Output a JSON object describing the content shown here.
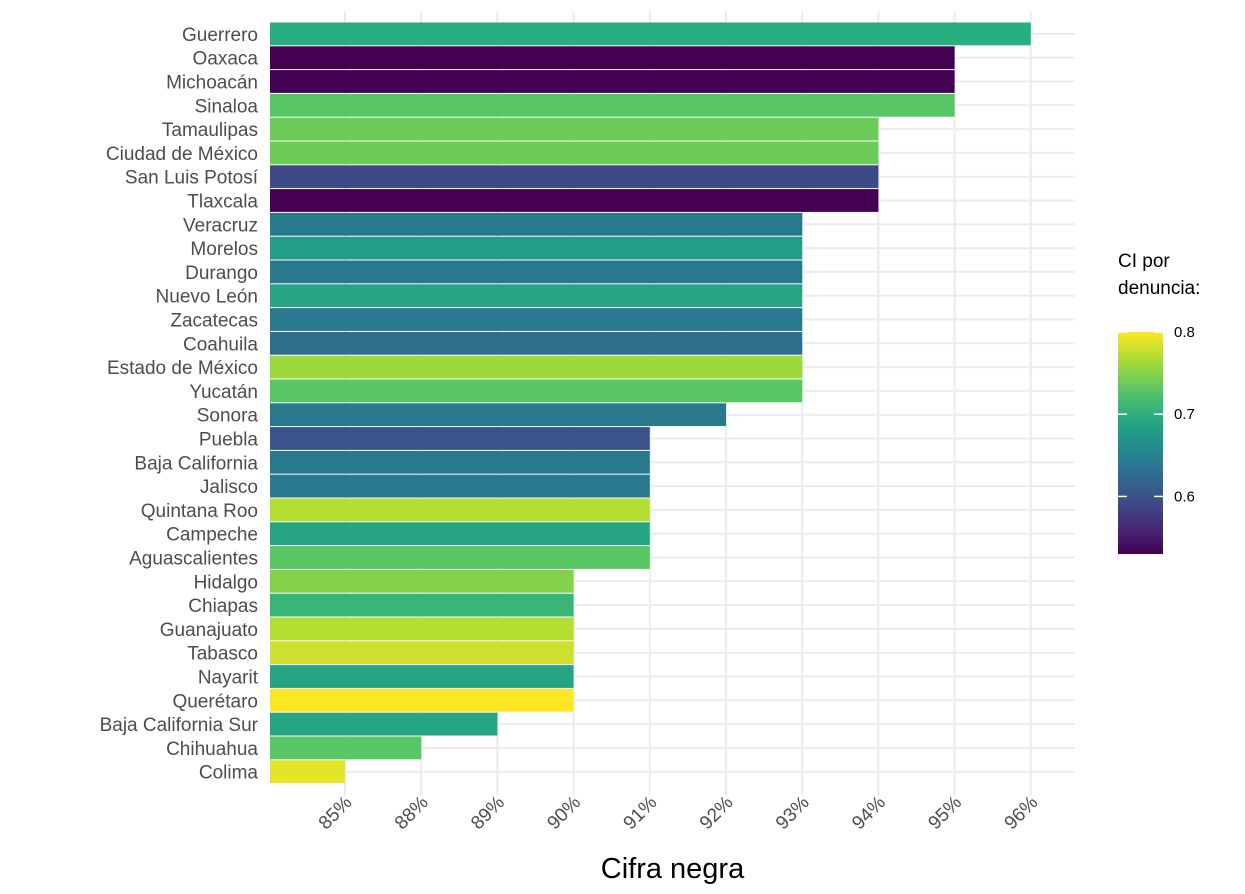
{
  "chart_data": {
    "type": "bar",
    "orientation": "horizontal",
    "categories": [
      "Guerrero",
      "Oaxaca",
      "Michoacán",
      "Sinaloa",
      "Tamaulipas",
      "Ciudad de México",
      "San Luis Potosí",
      "Tlaxcala",
      "Veracruz",
      "Morelos",
      "Durango",
      "Nuevo León",
      "Zacatecas",
      "Coahuila",
      "Estado de México",
      "Yucatán",
      "Sonora",
      "Puebla",
      "Baja California",
      "Jalisco",
      "Quintana Roo",
      "Campeche",
      "Aguascalientes",
      "Hidalgo",
      "Chiapas",
      "Guanajuato",
      "Tabasco",
      "Nayarit",
      "Querétaro",
      "Baja California Sur",
      "Chihuahua",
      "Colima"
    ],
    "values": [
      "96%",
      "95%",
      "95%",
      "95%",
      "94%",
      "94%",
      "94%",
      "94%",
      "93%",
      "93%",
      "93%",
      "93%",
      "93%",
      "93%",
      "93%",
      "93%",
      "92%",
      "91%",
      "91%",
      "91%",
      "91%",
      "91%",
      "91%",
      "90%",
      "90%",
      "90%",
      "90%",
      "90%",
      "90%",
      "89%",
      "88%",
      "85%"
    ],
    "color_values": [
      0.7,
      0.53,
      0.53,
      0.73,
      0.74,
      0.74,
      0.59,
      0.53,
      0.64,
      0.68,
      0.64,
      0.69,
      0.64,
      0.63,
      0.76,
      0.73,
      0.64,
      0.6,
      0.64,
      0.64,
      0.77,
      0.69,
      0.73,
      0.75,
      0.71,
      0.77,
      0.78,
      0.69,
      0.8,
      0.69,
      0.73,
      0.79
    ],
    "x_tick_labels": [
      "85%",
      "88%",
      "89%",
      "90%",
      "91%",
      "92%",
      "93%",
      "94%",
      "95%",
      "96%"
    ],
    "xlabel": "Cifra negra",
    "ylabel": "",
    "grid": true,
    "legend": {
      "title_lines": [
        "CI por",
        "denuncia:"
      ],
      "ticks": [
        "0.6",
        "0.7",
        "0.8"
      ],
      "range": [
        0.53,
        0.8
      ],
      "position": "right",
      "colormap": "viridis"
    }
  }
}
